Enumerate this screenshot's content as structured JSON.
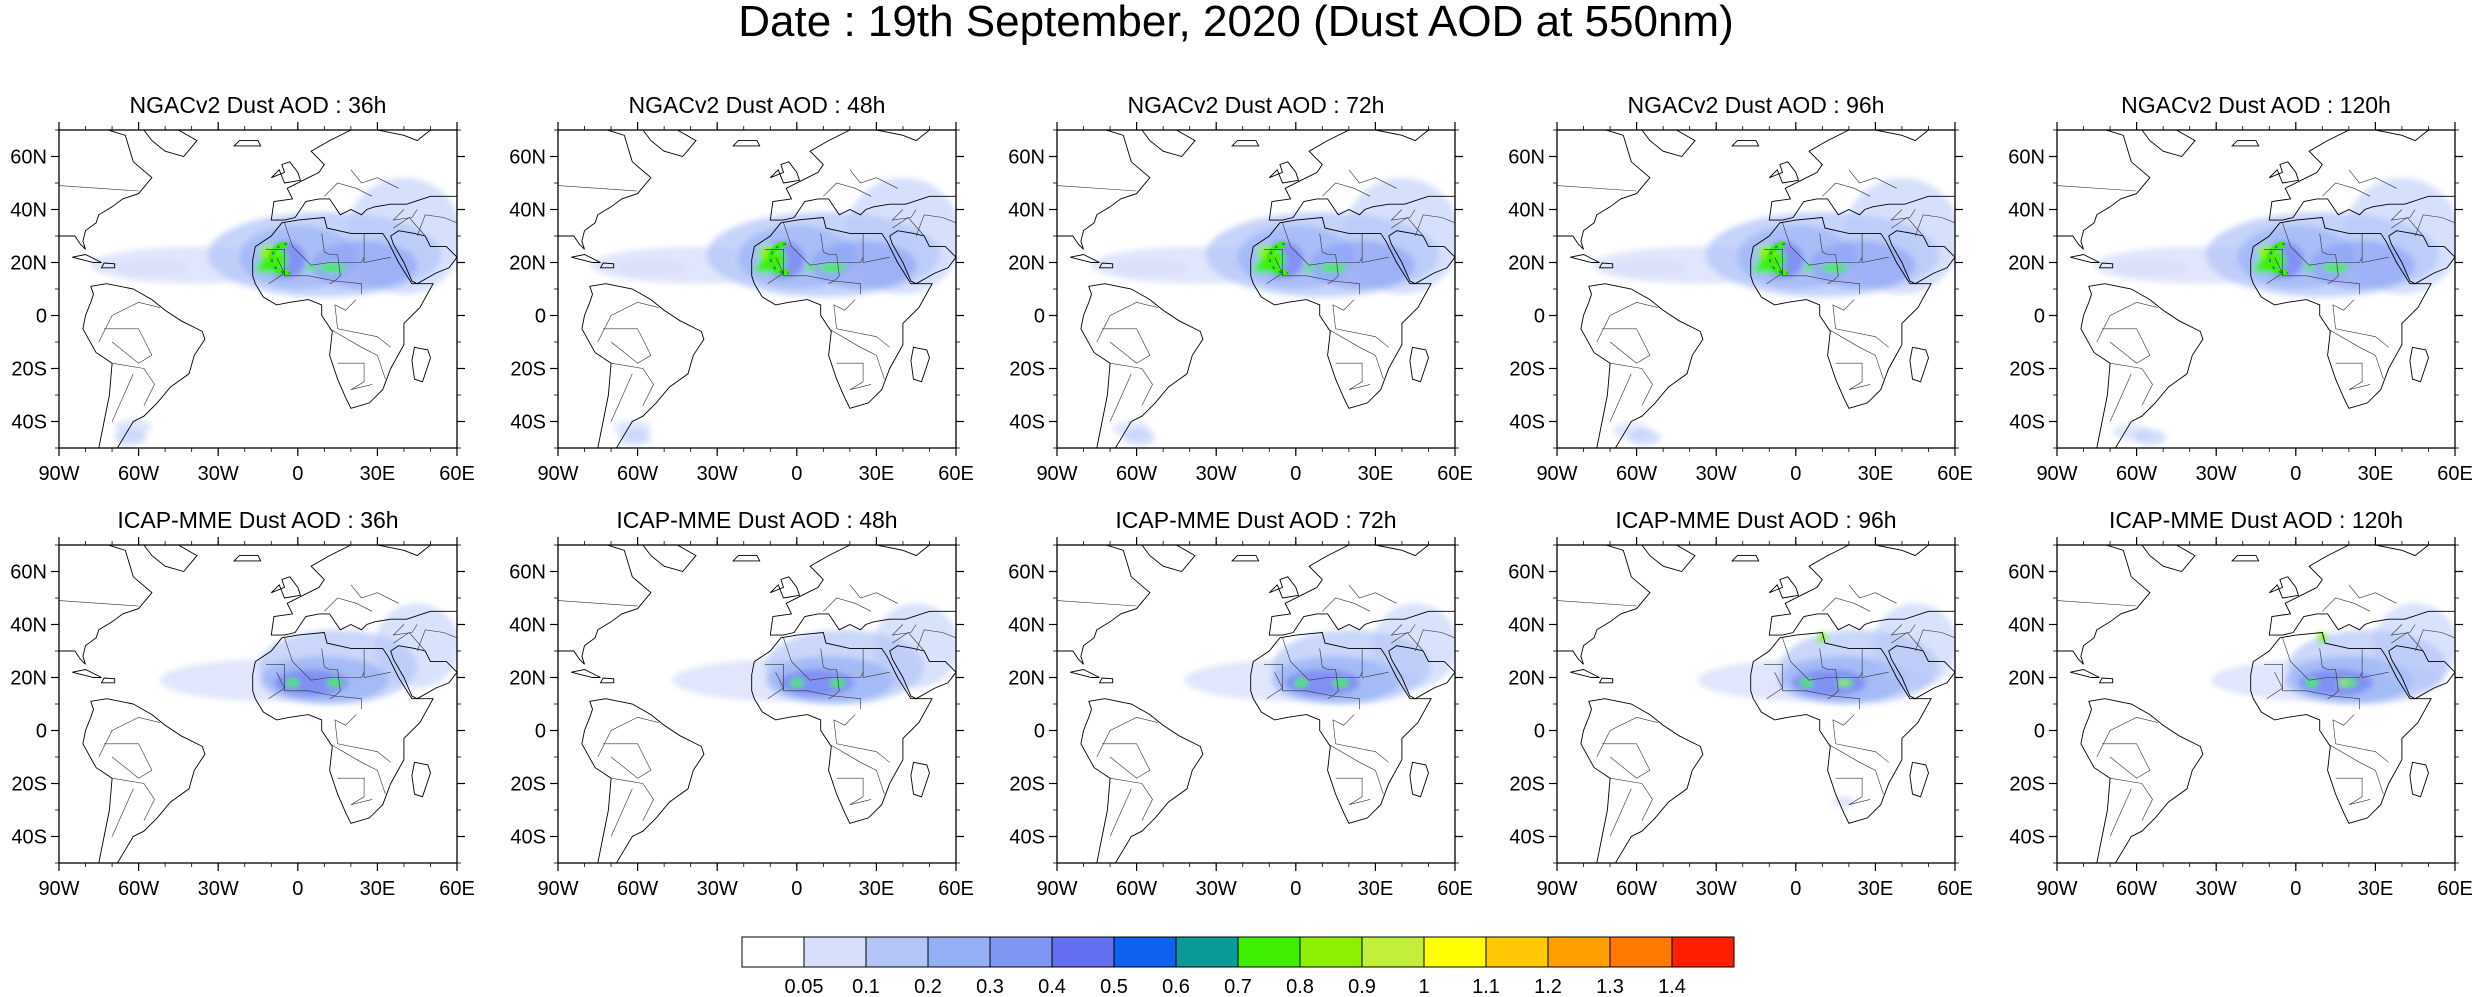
{
  "title": "Date : 19th September, 2020 (Dust AOD at 550nm)",
  "rows": [
    {
      "model": "NGACv2",
      "panels": [
        {
          "title": "NGACv2 Dust AOD : 36h",
          "lead_h": 36
        },
        {
          "title": "NGACv2 Dust AOD : 48h",
          "lead_h": 48
        },
        {
          "title": "NGACv2 Dust AOD : 72h",
          "lead_h": 72
        },
        {
          "title": "NGACv2 Dust AOD : 96h",
          "lead_h": 96
        },
        {
          "title": "NGACv2 Dust AOD : 120h",
          "lead_h": 120
        }
      ]
    },
    {
      "model": "ICAP-MME",
      "panels": [
        {
          "title": "ICAP-MME Dust AOD : 36h",
          "lead_h": 36
        },
        {
          "title": "ICAP-MME Dust AOD : 48h",
          "lead_h": 48
        },
        {
          "title": "ICAP-MME Dust AOD : 72h",
          "lead_h": 72
        },
        {
          "title": "ICAP-MME Dust AOD : 96h",
          "lead_h": 96
        },
        {
          "title": "ICAP-MME Dust AOD : 120h",
          "lead_h": 120
        }
      ]
    }
  ],
  "map": {
    "lon_range": [
      -90,
      60
    ],
    "lat_range": [
      -50,
      70
    ],
    "lon_ticks": [
      {
        "value": -90,
        "label": "90W"
      },
      {
        "value": -60,
        "label": "60W"
      },
      {
        "value": -30,
        "label": "30W"
      },
      {
        "value": 0,
        "label": "0"
      },
      {
        "value": 30,
        "label": "30E"
      },
      {
        "value": 60,
        "label": "60E"
      }
    ],
    "lat_ticks": [
      {
        "value": 60,
        "label": "60N"
      },
      {
        "value": 40,
        "label": "40N"
      },
      {
        "value": 20,
        "label": "20N"
      },
      {
        "value": 0,
        "label": "0"
      },
      {
        "value": -20,
        "label": "20S"
      },
      {
        "value": -40,
        "label": "40S"
      }
    ]
  },
  "colorbar": {
    "colors": [
      "#ffffff",
      "#d6defa",
      "#b4c6f8",
      "#94aff6",
      "#7f96f3",
      "#646ef0",
      "#0d62f0",
      "#0a9a9a",
      "#3ef000",
      "#8cf000",
      "#c2f03a",
      "#ffff00",
      "#ffc800",
      "#ffa000",
      "#ff7800",
      "#ff2000"
    ],
    "labels": [
      "0.05",
      "0.1",
      "0.2",
      "0.3",
      "0.4",
      "0.5",
      "0.6",
      "0.7",
      "0.8",
      "0.9",
      "1",
      "1.1",
      "1.2",
      "1.3",
      "1.4"
    ]
  }
}
